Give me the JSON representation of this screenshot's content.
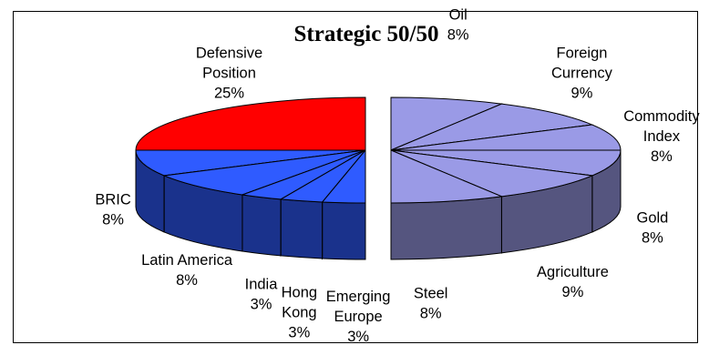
{
  "chart_data": {
    "type": "pie",
    "title": "Strategic 50/50",
    "slices": [
      {
        "label": "Oil",
        "value": 8,
        "color": "#9a9ae6"
      },
      {
        "label": "Foreign Currency",
        "value": 9,
        "color": "#9a9ae6"
      },
      {
        "label": "Commodity Index",
        "value": 8,
        "color": "#9a9ae6"
      },
      {
        "label": "Gold",
        "value": 8,
        "color": "#9a9ae6"
      },
      {
        "label": "Agriculture",
        "value": 9,
        "color": "#9a9ae6"
      },
      {
        "label": "Steel",
        "value": 8,
        "color": "#9a9ae6"
      },
      {
        "label": "Emerging Europe",
        "value": 3,
        "color": "#2f5bff"
      },
      {
        "label": "Hong Kong",
        "value": 3,
        "color": "#2f5bff"
      },
      {
        "label": "India",
        "value": 3,
        "color": "#2f5bff"
      },
      {
        "label": "Latin America",
        "value": 8,
        "color": "#2f5bff"
      },
      {
        "label": "BRIC",
        "value": 8,
        "color": "#2f5bff"
      },
      {
        "label": "Defensive Position",
        "value": 25,
        "color": "#ff0000"
      }
    ],
    "value_suffix": "%"
  },
  "labels": [
    {
      "name": "Oil",
      "lines": [
        "Oil",
        "8%"
      ]
    },
    {
      "name": "Foreign Currency",
      "lines": [
        "Foreign",
        "Currency",
        "9%"
      ]
    },
    {
      "name": "Commodity Index",
      "lines": [
        "Commodity",
        "Index",
        "8%"
      ]
    },
    {
      "name": "Gold",
      "lines": [
        "Gold",
        "8%"
      ]
    },
    {
      "name": "Agriculture",
      "lines": [
        "Agriculture",
        "9%"
      ]
    },
    {
      "name": "Steel",
      "lines": [
        "Steel",
        "8%"
      ]
    },
    {
      "name": "Emerging Europe",
      "lines": [
        "Emerging",
        "Europe",
        "3%"
      ]
    },
    {
      "name": "Hong Kong",
      "lines": [
        "Hong",
        "Kong",
        "3%"
      ]
    },
    {
      "name": "India",
      "lines": [
        "India",
        "3%"
      ]
    },
    {
      "name": "Latin America",
      "lines": [
        "Latin America",
        "8%"
      ]
    },
    {
      "name": "BRIC",
      "lines": [
        "BRIC",
        "8%"
      ]
    },
    {
      "name": "Defensive Position",
      "lines": [
        "Defensive",
        "Position",
        "25%"
      ]
    }
  ]
}
